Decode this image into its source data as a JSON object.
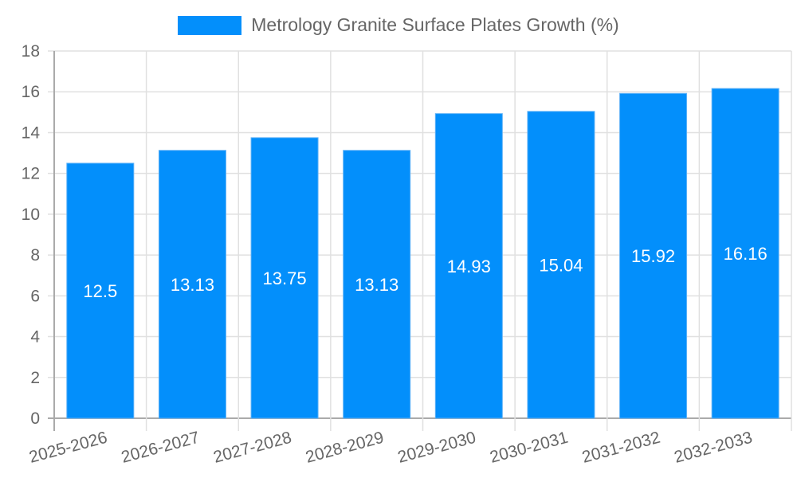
{
  "legend": {
    "label": "Metrology Granite Surface Plates Growth (%)",
    "color": "#038ffb"
  },
  "chart_data": {
    "type": "bar",
    "title": "",
    "categories": [
      "2025-2026",
      "2026-2027",
      "2027-2028",
      "2028-2029",
      "2029-2030",
      "2030-2031",
      "2031-2032",
      "2032-2033"
    ],
    "series": [
      {
        "name": "Metrology Granite Surface Plates Growth (%)",
        "values": [
          12.5,
          13.13,
          13.75,
          13.13,
          14.93,
          15.04,
          15.92,
          16.16
        ],
        "color": "#038ffb"
      }
    ],
    "xlabel": "",
    "ylabel": "",
    "ylim": [
      0,
      18
    ],
    "yticks": [
      0,
      2,
      4,
      6,
      8,
      10,
      12,
      14,
      16,
      18
    ],
    "grid": true,
    "legend_position": "top",
    "data_labels": true
  }
}
